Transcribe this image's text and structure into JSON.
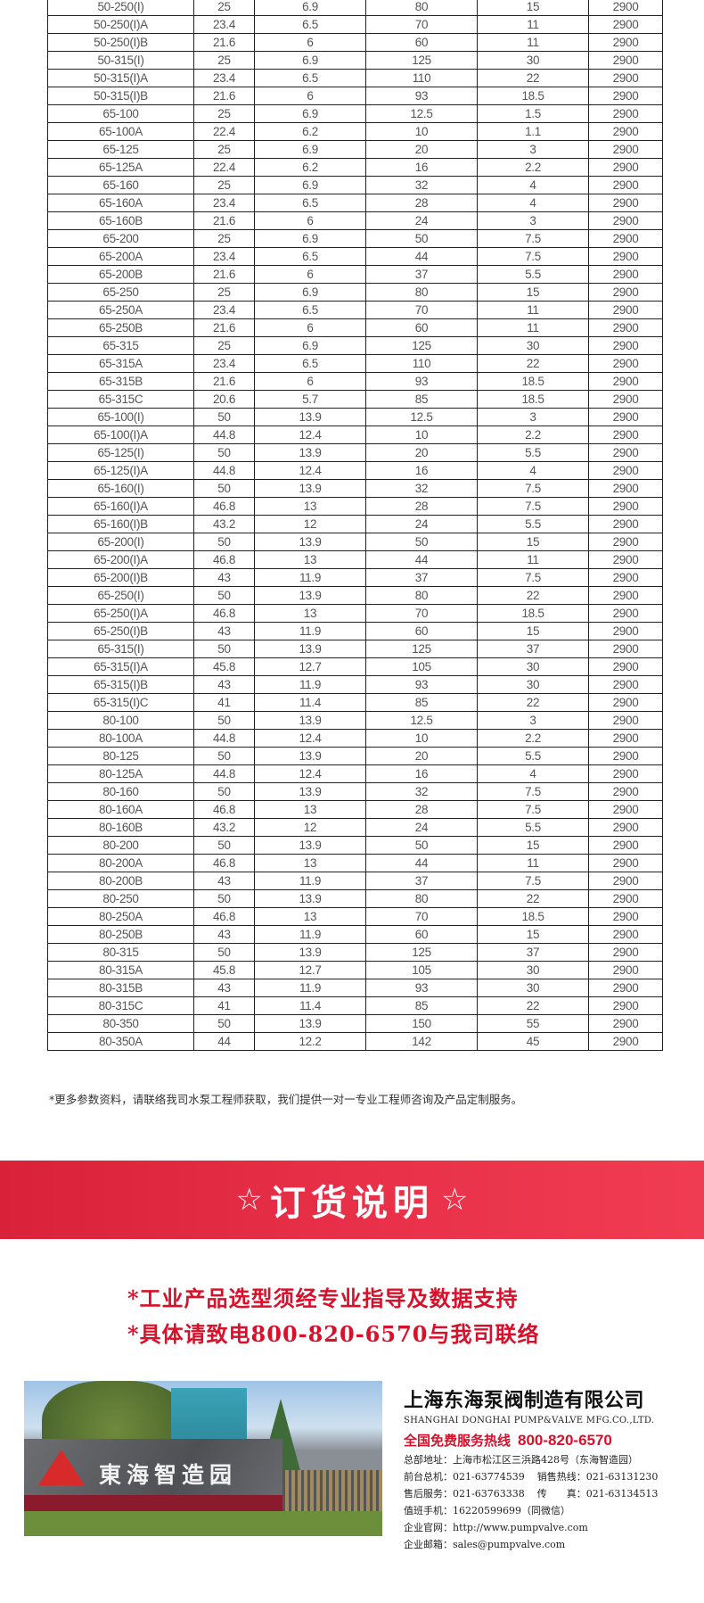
{
  "table": {
    "rows": [
      [
        "50-250(I)",
        "25",
        "6.9",
        "80",
        "15",
        "2900"
      ],
      [
        "50-250(I)A",
        "23.4",
        "6.5",
        "70",
        "11",
        "2900"
      ],
      [
        "50-250(I)B",
        "21.6",
        "6",
        "60",
        "11",
        "2900"
      ],
      [
        "50-315(I)",
        "25",
        "6.9",
        "125",
        "30",
        "2900"
      ],
      [
        "50-315(I)A",
        "23.4",
        "6.5",
        "110",
        "22",
        "2900"
      ],
      [
        "50-315(I)B",
        "21.6",
        "6",
        "93",
        "18.5",
        "2900"
      ],
      [
        "65-100",
        "25",
        "6.9",
        "12.5",
        "1.5",
        "2900"
      ],
      [
        "65-100A",
        "22.4",
        "6.2",
        "10",
        "1.1",
        "2900"
      ],
      [
        "65-125",
        "25",
        "6.9",
        "20",
        "3",
        "2900"
      ],
      [
        "65-125A",
        "22.4",
        "6.2",
        "16",
        "2.2",
        "2900"
      ],
      [
        "65-160",
        "25",
        "6.9",
        "32",
        "4",
        "2900"
      ],
      [
        "65-160A",
        "23.4",
        "6.5",
        "28",
        "4",
        "2900"
      ],
      [
        "65-160B",
        "21.6",
        "6",
        "24",
        "3",
        "2900"
      ],
      [
        "65-200",
        "25",
        "6.9",
        "50",
        "7.5",
        "2900"
      ],
      [
        "65-200A",
        "23.4",
        "6.5",
        "44",
        "7.5",
        "2900"
      ],
      [
        "65-200B",
        "21.6",
        "6",
        "37",
        "5.5",
        "2900"
      ],
      [
        "65-250",
        "25",
        "6.9",
        "80",
        "15",
        "2900"
      ],
      [
        "65-250A",
        "23.4",
        "6.5",
        "70",
        "11",
        "2900"
      ],
      [
        "65-250B",
        "21.6",
        "6",
        "60",
        "11",
        "2900"
      ],
      [
        "65-315",
        "25",
        "6.9",
        "125",
        "30",
        "2900"
      ],
      [
        "65-315A",
        "23.4",
        "6.5",
        "110",
        "22",
        "2900"
      ],
      [
        "65-315B",
        "21.6",
        "6",
        "93",
        "18.5",
        "2900"
      ],
      [
        "65-315C",
        "20.6",
        "5.7",
        "85",
        "18.5",
        "2900"
      ],
      [
        "65-100(I)",
        "50",
        "13.9",
        "12.5",
        "3",
        "2900"
      ],
      [
        "65-100(I)A",
        "44.8",
        "12.4",
        "10",
        "2.2",
        "2900"
      ],
      [
        "65-125(I)",
        "50",
        "13.9",
        "20",
        "5.5",
        "2900"
      ],
      [
        "65-125(I)A",
        "44.8",
        "12.4",
        "16",
        "4",
        "2900"
      ],
      [
        "65-160(I)",
        "50",
        "13.9",
        "32",
        "7.5",
        "2900"
      ],
      [
        "65-160(I)A",
        "46.8",
        "13",
        "28",
        "7.5",
        "2900"
      ],
      [
        "65-160(I)B",
        "43.2",
        "12",
        "24",
        "5.5",
        "2900"
      ],
      [
        "65-200(I)",
        "50",
        "13.9",
        "50",
        "15",
        "2900"
      ],
      [
        "65-200(I)A",
        "46.8",
        "13",
        "44",
        "11",
        "2900"
      ],
      [
        "65-200(I)B",
        "43",
        "11.9",
        "37",
        "7.5",
        "2900"
      ],
      [
        "65-250(I)",
        "50",
        "13.9",
        "80",
        "22",
        "2900"
      ],
      [
        "65-250(I)A",
        "46.8",
        "13",
        "70",
        "18.5",
        "2900"
      ],
      [
        "65-250(I)B",
        "43",
        "11.9",
        "60",
        "15",
        "2900"
      ],
      [
        "65-315(I)",
        "50",
        "13.9",
        "125",
        "37",
        "2900"
      ],
      [
        "65-315(I)A",
        "45.8",
        "12.7",
        "105",
        "30",
        "2900"
      ],
      [
        "65-315(I)B",
        "43",
        "11.9",
        "93",
        "30",
        "2900"
      ],
      [
        "65-315(I)C",
        "41",
        "11.4",
        "85",
        "22",
        "2900"
      ],
      [
        "80-100",
        "50",
        "13.9",
        "12.5",
        "3",
        "2900"
      ],
      [
        "80-100A",
        "44.8",
        "12.4",
        "10",
        "2.2",
        "2900"
      ],
      [
        "80-125",
        "50",
        "13.9",
        "20",
        "5.5",
        "2900"
      ],
      [
        "80-125A",
        "44.8",
        "12.4",
        "16",
        "4",
        "2900"
      ],
      [
        "80-160",
        "50",
        "13.9",
        "32",
        "7.5",
        "2900"
      ],
      [
        "80-160A",
        "46.8",
        "13",
        "28",
        "7.5",
        "2900"
      ],
      [
        "80-160B",
        "43.2",
        "12",
        "24",
        "5.5",
        "2900"
      ],
      [
        "80-200",
        "50",
        "13.9",
        "50",
        "15",
        "2900"
      ],
      [
        "80-200A",
        "46.8",
        "13",
        "44",
        "11",
        "2900"
      ],
      [
        "80-200B",
        "43",
        "11.9",
        "37",
        "7.5",
        "2900"
      ],
      [
        "80-250",
        "50",
        "13.9",
        "80",
        "22",
        "2900"
      ],
      [
        "80-250A",
        "46.8",
        "13",
        "70",
        "18.5",
        "2900"
      ],
      [
        "80-250B",
        "43",
        "11.9",
        "60",
        "15",
        "2900"
      ],
      [
        "80-315",
        "50",
        "13.9",
        "125",
        "37",
        "2900"
      ],
      [
        "80-315A",
        "45.8",
        "12.7",
        "105",
        "30",
        "2900"
      ],
      [
        "80-315B",
        "43",
        "11.9",
        "93",
        "30",
        "2900"
      ],
      [
        "80-315C",
        "41",
        "11.4",
        "85",
        "22",
        "2900"
      ],
      [
        "80-350",
        "50",
        "13.9",
        "150",
        "55",
        "2900"
      ],
      [
        "80-350A",
        "44",
        "12.2",
        "142",
        "45",
        "2900"
      ]
    ]
  },
  "footnote": "*更多参数资料，请联络我司水泵工程师获取，我们提供一对一专业工程师咨询及产品定制服务。",
  "banner": {
    "star": "☆",
    "title": "订货说明",
    "color": "#e32b42"
  },
  "slogans": [
    "*工业产品选型须经专业指导及数据支持",
    "*具体请致电800-820-6570与我司联络"
  ],
  "photo": {
    "sign_text": "東海智造园"
  },
  "company": {
    "name_cn": "上海东海泵阀制造有限公司",
    "name_en": "SHANGHAI DONGHAI PUMP&VALVE MFG.CO.,LTD.",
    "hotline_label": "全国免费服务热线",
    "hotline": "800-820-6570",
    "address": "总部地址：上海市松江区三浜路428号（东海智造园）",
    "front_desk": "前台总机：021-63774539",
    "sales_line": "销售热线：021-63131230",
    "after_sales": "售后服务：021-63763338",
    "fax": "传　　真：021-63134513",
    "mobile": "值班手机：16220599699（同微信）",
    "website": "企业官网：http://www.pumpvalve.com",
    "email": "企业邮箱：sales@pumpvalve.com"
  }
}
